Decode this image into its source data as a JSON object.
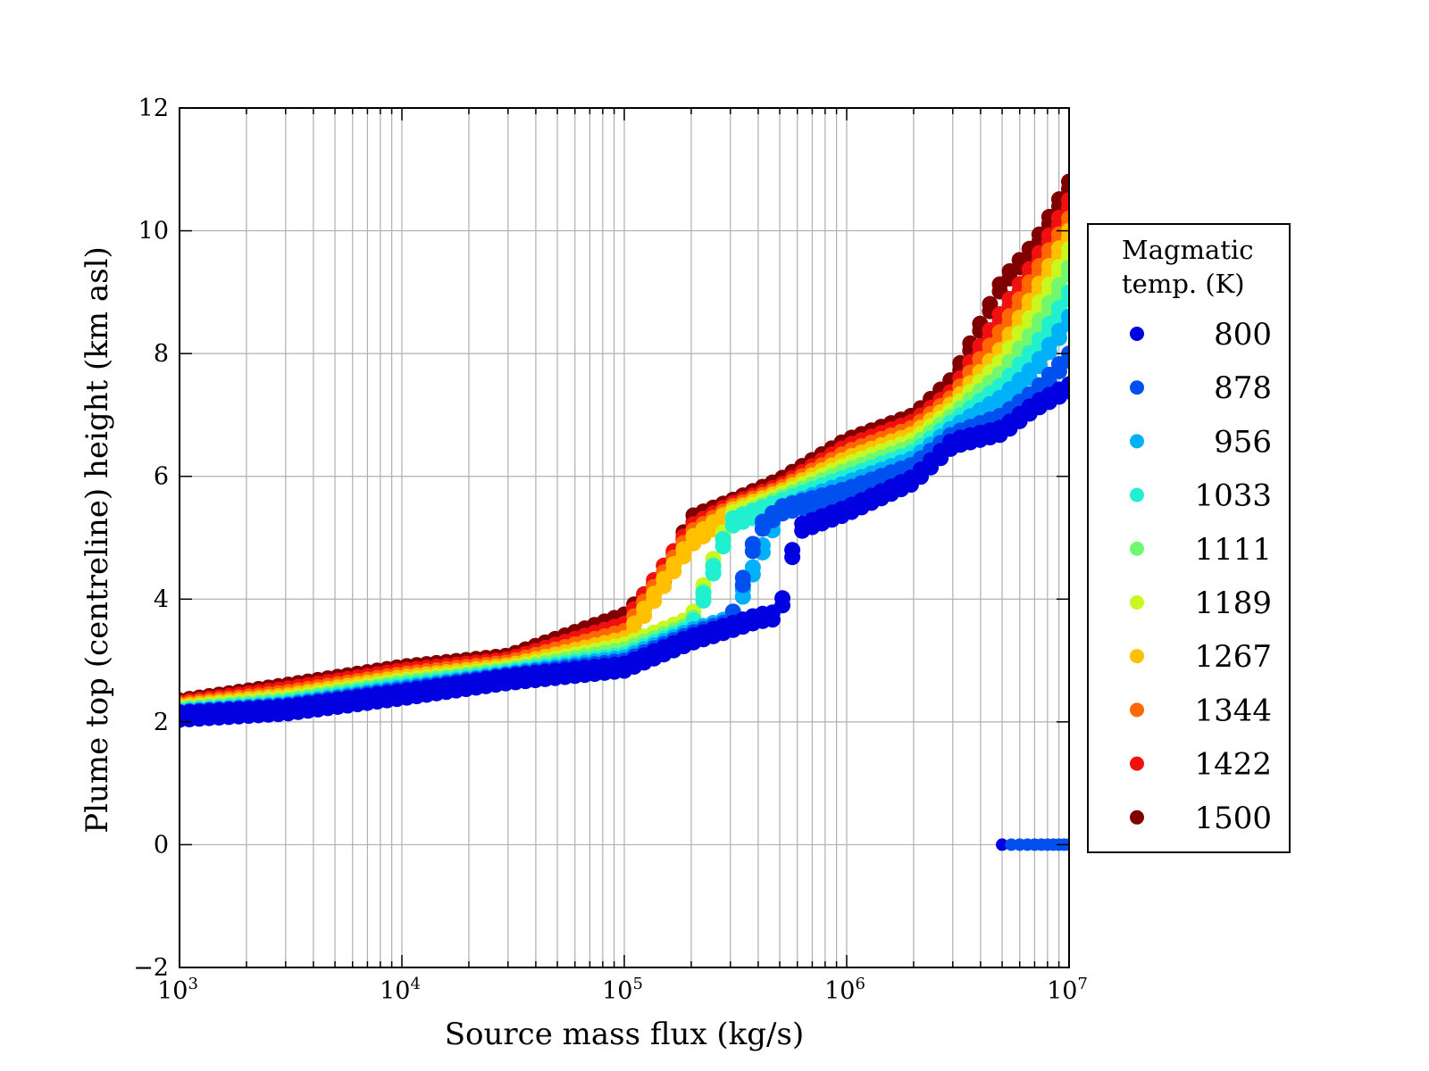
{
  "chart_data": {
    "type": "scatter",
    "title": "",
    "xlabel": "Source mass flux (kg/s)",
    "ylabel": "Plume top (centreline) height (km asl)",
    "xscale": "log",
    "xlim": [
      1000,
      10000000
    ],
    "ylim": [
      -2,
      12
    ],
    "x_ticks": [
      {
        "base": "10",
        "exp": "3",
        "value": 1000
      },
      {
        "base": "10",
        "exp": "4",
        "value": 10000
      },
      {
        "base": "10",
        "exp": "5",
        "value": 100000
      },
      {
        "base": "10",
        "exp": "6",
        "value": 1000000
      },
      {
        "base": "10",
        "exp": "7",
        "value": 10000000
      }
    ],
    "y_ticks": [
      "−2",
      "0",
      "2",
      "4",
      "6",
      "8",
      "10",
      "12"
    ],
    "y_tick_values": [
      -2,
      0,
      2,
      4,
      6,
      8,
      10,
      12
    ],
    "grid": true,
    "legend": {
      "title_lines": [
        "Magmatic",
        "temp. (K)"
      ],
      "placement": "right-outside"
    },
    "series": [
      {
        "name": "800",
        "color": "#0000e0",
        "x": [
          1000,
          3000,
          10000,
          30000,
          100000,
          200000,
          300000,
          400000,
          500000,
          600000,
          1000000,
          2000000,
          3000000,
          5000000,
          7000000,
          10000000
        ],
        "y": [
          2.15,
          2.25,
          2.5,
          2.75,
          2.95,
          3.4,
          3.6,
          3.75,
          3.8,
          5.2,
          5.5,
          6.0,
          6.6,
          6.8,
          7.2,
          7.5
        ]
      },
      {
        "name": "878",
        "color": "#0050f0",
        "x": [
          1000,
          3000,
          10000,
          30000,
          100000,
          200000,
          300000,
          400000,
          500000,
          1000000,
          2000000,
          3000000,
          5000000,
          7000000,
          10000000
        ],
        "y": [
          2.16,
          2.27,
          2.53,
          2.77,
          3.0,
          3.45,
          3.65,
          5.2,
          5.5,
          5.8,
          6.2,
          6.7,
          7.0,
          7.4,
          8.0
        ]
      },
      {
        "name": "956",
        "color": "#00b0f8",
        "x": [
          1000,
          3000,
          10000,
          30000,
          100000,
          200000,
          300000,
          500000,
          1000000,
          2000000,
          3000000,
          5000000,
          7000000,
          10000000
        ],
        "y": [
          2.17,
          2.29,
          2.56,
          2.79,
          3.05,
          3.5,
          3.7,
          5.5,
          5.9,
          6.3,
          6.8,
          7.3,
          7.8,
          8.6
        ]
      },
      {
        "name": "1033",
        "color": "#20f0d0",
        "x": [
          1000,
          3000,
          10000,
          30000,
          100000,
          200000,
          300000,
          500000,
          1000000,
          2000000,
          3000000,
          5000000,
          7000000,
          10000000
        ],
        "y": [
          2.19,
          2.32,
          2.6,
          2.82,
          3.1,
          3.55,
          5.3,
          5.6,
          6.0,
          6.4,
          6.9,
          7.5,
          8.1,
          9.0
        ]
      },
      {
        "name": "1111",
        "color": "#70f870",
        "x": [
          1000,
          3000,
          10000,
          30000,
          100000,
          200000,
          300000,
          500000,
          1000000,
          2000000,
          3000000,
          5000000,
          7000000,
          10000000
        ],
        "y": [
          2.21,
          2.35,
          2.64,
          2.85,
          3.18,
          3.6,
          5.3,
          5.65,
          6.1,
          6.5,
          7.0,
          7.7,
          8.4,
          9.4
        ]
      },
      {
        "name": "1189",
        "color": "#c8f820",
        "x": [
          1000,
          3000,
          10000,
          30000,
          100000,
          200000,
          300000,
          500000,
          1000000,
          2000000,
          3000000,
          5000000,
          7000000,
          10000000
        ],
        "y": [
          2.23,
          2.39,
          2.68,
          2.88,
          3.26,
          3.7,
          5.4,
          5.7,
          6.2,
          6.6,
          7.1,
          7.9,
          8.7,
          9.7
        ]
      },
      {
        "name": "1267",
        "color": "#ffc000",
        "x": [
          1000,
          3000,
          10000,
          30000,
          100000,
          200000,
          300000,
          500000,
          1000000,
          2000000,
          3000000,
          5000000,
          7000000,
          10000000
        ],
        "y": [
          2.26,
          2.43,
          2.73,
          2.92,
          3.36,
          5.0,
          5.45,
          5.75,
          6.3,
          6.7,
          7.2,
          8.1,
          9.0,
          10.0
        ]
      },
      {
        "name": "1344",
        "color": "#ff6800",
        "x": [
          1000,
          3000,
          10000,
          30000,
          100000,
          200000,
          300000,
          500000,
          1000000,
          2000000,
          3000000,
          5000000,
          7000000,
          10000000
        ],
        "y": [
          2.29,
          2.48,
          2.78,
          2.97,
          3.48,
          5.1,
          5.5,
          5.8,
          6.4,
          6.8,
          7.3,
          8.4,
          9.3,
          10.2
        ]
      },
      {
        "name": "1422",
        "color": "#f01010",
        "x": [
          1000,
          3000,
          10000,
          30000,
          100000,
          200000,
          300000,
          500000,
          1000000,
          2000000,
          3000000,
          5000000,
          7000000,
          10000000
        ],
        "y": [
          2.32,
          2.54,
          2.84,
          3.02,
          3.6,
          5.2,
          5.55,
          5.85,
          6.5,
          6.9,
          7.4,
          8.7,
          9.5,
          10.5
        ]
      },
      {
        "name": "1500",
        "color": "#800000",
        "x": [
          1000,
          3000,
          10000,
          30000,
          100000,
          150000,
          200000,
          300000,
          500000,
          1000000,
          2000000,
          3000000,
          5000000,
          7000000,
          10000000
        ],
        "y": [
          2.35,
          2.6,
          2.9,
          3.08,
          3.75,
          4.4,
          5.35,
          5.6,
          5.95,
          6.6,
          7.0,
          7.6,
          9.2,
          9.8,
          10.8
        ]
      }
    ],
    "zero_points": {
      "x": [
        5000000,
        5500000,
        6000000,
        6500000,
        7000000,
        7500000,
        8000000,
        8500000,
        9000000,
        9500000,
        10000000
      ],
      "y": 0,
      "colors": [
        "#0000e0",
        "#0050f0",
        "#0050f0",
        "#0050f0",
        "#0050f0",
        "#0050f0",
        "#0050f0",
        "#0050f0",
        "#0050f0",
        "#0050f0",
        "#0050f0"
      ]
    }
  }
}
